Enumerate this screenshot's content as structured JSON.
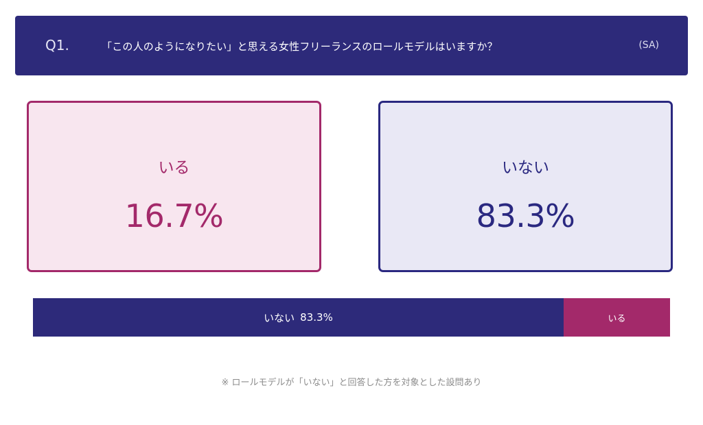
{
  "header": {
    "question_number": "Q1.",
    "question_text": "「この人のようになりたい」と思える女性フリーランスのロールモデルはいますか？",
    "answer_type": "(SA)"
  },
  "cards": [
    {
      "label": "いる",
      "value_text": "16.7%"
    },
    {
      "label": "いない",
      "value_text": "83.3%"
    }
  ],
  "bar": {
    "no_label": "いない",
    "no_pct_text": "83.3%",
    "yes_label": "いる"
  },
  "footnote": "※ ロールモデルが「いない」と回答した方を対象とした設問あり",
  "colors": {
    "navy": "#2d2a7a",
    "magenta": "#a3296a",
    "card_yes_bg": "#f8e6ef",
    "card_no_bg": "#e9e8f5"
  },
  "chart_data": {
    "type": "bar",
    "categories": [
      "いない",
      "いる"
    ],
    "values": [
      83.3,
      16.7
    ],
    "title": "「この人のようになりたい」と思える女性フリーランスのロールモデルはいますか？",
    "xlabel": "",
    "ylabel": "",
    "ylim": [
      0,
      100
    ]
  }
}
